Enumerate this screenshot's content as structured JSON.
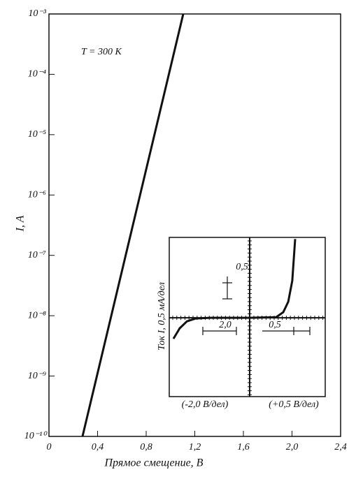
{
  "chart_data": [
    {
      "type": "line",
      "annotation": "T = 300 K",
      "xlabel": "Прямое смещение, В",
      "ylabel": "I, A",
      "x": [
        0.276,
        1.105
      ],
      "values": [
        1e-10,
        0.001
      ],
      "color": "#111111",
      "xlim": [
        0,
        2.4
      ],
      "xticks": [
        0,
        {
          "value": 0.4,
          "label": "0,4"
        },
        {
          "value": 0.8,
          "label": "0,8"
        },
        {
          "value": 1.2,
          "label": "1,2"
        },
        {
          "value": 1.6,
          "label": "1,6"
        },
        {
          "value": 2.0,
          "label": "2,0"
        },
        {
          "value": 2.4,
          "label": "2,4"
        }
      ],
      "ylim": [
        1e-10,
        0.001
      ],
      "log_y": true,
      "grid": false,
      "yticks": [
        {
          "value": 0.001,
          "label": "10⁻³"
        },
        {
          "value": 0.0001,
          "label": "10⁻⁴"
        },
        {
          "value": 1e-05,
          "label": "10⁻⁵"
        },
        {
          "value": 1e-06,
          "label": "10⁻⁶"
        },
        {
          "value": 1e-07,
          "label": "10⁻⁷"
        },
        {
          "value": 1e-08,
          "label": "10⁻⁸"
        },
        {
          "value": 1e-09,
          "label": "10⁻⁹"
        },
        {
          "value": 1e-10,
          "label": "10⁻¹⁰"
        }
      ]
    },
    {
      "type": "line",
      "ylabel": "Ток I, 0,5 мА/дел",
      "xlabel_left": "(-2,0 В/дел)",
      "xlabel_right": "(+0,5 В/дел)",
      "scale_y": "0,5",
      "scale_x_left": "2,0",
      "scale_x_right": "0,5",
      "x": [
        -4.74,
        -4.35,
        -3.9,
        -3.35,
        -2.48,
        0,
        1.65,
        2.09,
        2.4,
        2.65,
        2.83
      ],
      "values": [
        -1.3,
        -0.65,
        -0.22,
        -0.04,
        0,
        0,
        0.04,
        0.35,
        1,
        2.3,
        4.9
      ],
      "color": "#111111",
      "xlim": [
        -5,
        4.7
      ],
      "ylim": [
        -4.9,
        5
      ]
    }
  ]
}
